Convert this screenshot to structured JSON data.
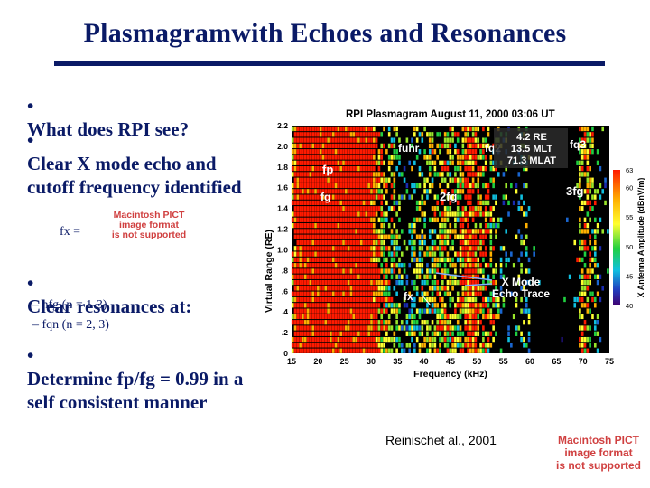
{
  "slide": {
    "title": "Plasmagramwith Echoes and Resonances",
    "bullets": [
      {
        "symbol": "•",
        "text": "What does RPI see?"
      },
      {
        "symbol": "•",
        "text": "Clear X mode echo and cutoff frequency identified"
      },
      {
        "symbol": "•",
        "text": "Clear resonances at:"
      },
      {
        "symbol": "•",
        "text": "Determine fp/fg = 0.99 in a self consistent manner"
      }
    ],
    "fx_label": "fx =",
    "sub_bullets": [
      {
        "symbol": "–",
        "text": "nfg (n = 1-3)"
      },
      {
        "symbol": "–",
        "text": "fqn (n = 2, 3)"
      }
    ],
    "pict_placeholder_1": [
      "Macintosh PICT",
      "image format",
      "is not supported"
    ],
    "pict_placeholder_2": [
      "Macintosh PICT",
      "image format",
      "is not supported"
    ],
    "citation": "Reinischet al., 2001"
  },
  "figure": {
    "title": "RPI Plasmagram August 11, 2000 03:06 UT",
    "info_box": [
      "4.2 RE",
      "13.5 MLT",
      "71.3 MLAT"
    ],
    "annotations": [
      "fp",
      "fuhr",
      "fq2",
      "fq3",
      "fg",
      "2fg",
      "3fg",
      "fx",
      "X Mode",
      "Echo Trace"
    ],
    "colorbar_label": "X Antenna Amplitude (dBnV/m)",
    "colorbar_ticks": [
      "63",
      "60",
      "55",
      "50",
      "45",
      "40"
    ]
  },
  "chart_data": {
    "type": "heatmap",
    "title": "RPI Plasmagram August 11, 2000 03:06 UT",
    "xlabel": "Frequency (kHz)",
    "ylabel": "Virtual Range (RE)",
    "x_ticks": [
      "15",
      "20",
      "25",
      "30",
      "35",
      "40",
      "45",
      "50",
      "55",
      "60",
      "65",
      "70",
      "75"
    ],
    "y_ticks": [
      "0",
      ".2",
      ".4",
      ".6",
      ".8",
      "1.0",
      "1.2",
      "1.4",
      "1.6",
      "1.8",
      "2.0",
      "2.2"
    ],
    "xlim": [
      15,
      75
    ],
    "ylim": [
      0,
      2.2
    ],
    "colorbar_range": [
      40,
      63
    ],
    "colors": {
      "high": "#ff2000",
      "mid": "#20d040",
      "low": "#1020a0",
      "background": "#000000"
    }
  }
}
